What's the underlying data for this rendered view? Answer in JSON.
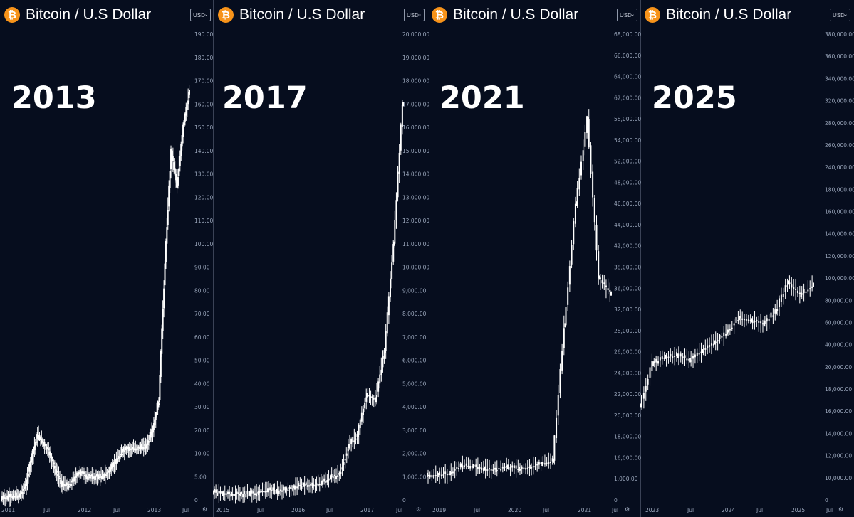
{
  "panels": [
    {
      "title": "Bitcoin / U.S Dollar",
      "currency": "USD",
      "year_label": "2013",
      "settings_icon": "gear-icon"
    },
    {
      "title": "Bitcoin / U.S Dollar",
      "currency": "USD",
      "year_label": "2017",
      "settings_icon": "gear-icon"
    },
    {
      "title": "Bitcoin / U.S Dollar",
      "currency": "USD",
      "year_label": "2021",
      "settings_icon": "gear-icon"
    },
    {
      "title": "Bitcoin / U.S Dollar",
      "currency": "USD",
      "year_label": "2025",
      "settings_icon": "gear-icon"
    }
  ],
  "colors": {
    "background": "#060d1e",
    "candle": "#ffffff",
    "axis_text": "#9aa6bb",
    "bitcoin_orange": "#f7931a"
  },
  "chart_data": [
    {
      "type": "line",
      "title": "Bitcoin / U.S Dollar",
      "scale": "nonlinear price axis",
      "y_ticks": [
        "0",
        "5.00",
        "10.00",
        "20.00",
        "30.00",
        "40.00",
        "50.00",
        "60.00",
        "70.00",
        "80.00",
        "90.00",
        "100.00",
        "110.00",
        "120.00",
        "130.00",
        "140.00",
        "150.00",
        "160.00",
        "170.00",
        "180.00",
        "190.00"
      ],
      "x_ticks": [
        "2011",
        "Jul",
        "2012",
        "Jul",
        "2013",
        "Jul"
      ],
      "series": [
        {
          "x": [
            "2010-12",
            "2011-01",
            "2011-02",
            "2011-03",
            "2011-04",
            "2011-05",
            "2011-06",
            "2011-07",
            "2011-08",
            "2011-09",
            "2011-10",
            "2011-11",
            "2011-12",
            "2012-01",
            "2012-02",
            "2012-03",
            "2012-04",
            "2012-05",
            "2012-06",
            "2012-07",
            "2012-08",
            "2012-09",
            "2012-10",
            "2012-11",
            "2012-12",
            "2013-01",
            "2013-02",
            "2013-03",
            "2013-04",
            "2013-05",
            "2013-06",
            "2013-07"
          ],
          "values": [
            0.3,
            0.5,
            0.9,
            1.0,
            3.0,
            9.0,
            18.0,
            14.0,
            10.0,
            6.0,
            3.5,
            3.0,
            4.5,
            6.0,
            5.0,
            5.0,
            5.0,
            5.2,
            6.5,
            8.5,
            11.0,
            12.0,
            12.0,
            12.5,
            13.5,
            20.0,
            33.0,
            92.0,
            140.0,
            125.0,
            150.0,
            165.0
          ]
        }
      ]
    },
    {
      "type": "line",
      "title": "Bitcoin / U.S Dollar",
      "scale": "nonlinear price axis",
      "y_ticks": [
        "0",
        "1,000.00",
        "2,000.00",
        "3,000.00",
        "4,000.00",
        "5,000.00",
        "6,000.00",
        "7,000.00",
        "8,000.00",
        "9,000.00",
        "10,000.00",
        "11,000.00",
        "12,000.00",
        "13,000.00",
        "14,000.00",
        "15,000.00",
        "16,000.00",
        "17,000.00",
        "18,000.00",
        "19,000.00",
        "20,000.00"
      ],
      "x_ticks": [
        "2015",
        "Jul",
        "2016",
        "Jul",
        "2017",
        "Jul"
      ],
      "series": [
        {
          "x": [
            "2014-12",
            "2015-01",
            "2015-03",
            "2015-05",
            "2015-07",
            "2015-09",
            "2015-11",
            "2016-01",
            "2016-03",
            "2016-05",
            "2016-07",
            "2016-09",
            "2016-11",
            "2017-01",
            "2017-03",
            "2017-05",
            "2017-07",
            "2017-08",
            "2017-09",
            "2017-10",
            "2017-11",
            "2017-12"
          ],
          "values": [
            320,
            270,
            250,
            240,
            280,
            300,
            420,
            400,
            420,
            530,
            650,
            610,
            740,
            970,
            1100,
            2300,
            2800,
            4500,
            4300,
            6400,
            11000,
            17000
          ]
        }
      ]
    },
    {
      "type": "line",
      "title": "Bitcoin / U.S Dollar",
      "scale": "nonlinear price axis",
      "y_ticks": [
        "0",
        "1,000.00",
        "16,000.00",
        "18,000.00",
        "20,000.00",
        "22,000.00",
        "24,000.00",
        "26,000.00",
        "28,000.00",
        "32,000.00",
        "36,000.00",
        "38,000.00",
        "42,000.00",
        "44,000.00",
        "46,000.00",
        "48,000.00",
        "52,000.00",
        "54,000.00",
        "58,000.00",
        "62,000.00",
        "64,000.00",
        "66,000.00",
        "68,000.00"
      ],
      "x_ticks": [
        "2019",
        "Jul",
        "2020",
        "Jul",
        "2021",
        "Jul"
      ],
      "series": [
        {
          "x": [
            "2018-12",
            "2019-02",
            "2019-04",
            "2019-06",
            "2019-08",
            "2019-10",
            "2019-12",
            "2020-02",
            "2020-04",
            "2020-06",
            "2020-08",
            "2020-10",
            "2020-12",
            "2021-02",
            "2021-04",
            "2021-05",
            "2021-06"
          ],
          "values": [
            3700,
            3600,
            5000,
            10500,
            10000,
            8300,
            7200,
            9500,
            7800,
            9300,
            11700,
            13800,
            29000,
            46000,
            58000,
            37000,
            35000
          ]
        }
      ]
    },
    {
      "type": "line",
      "title": "Bitcoin / U.S Dollar",
      "scale": "nonlinear price axis",
      "y_ticks": [
        "0",
        "10,000.00",
        "12,000.00",
        "14,000.00",
        "16,000.00",
        "18,000.00",
        "20,000.00",
        "40,000.00",
        "60,000.00",
        "80,000.00",
        "100,000.00",
        "120,000.00",
        "140,000.00",
        "160,000.00",
        "180,000.00",
        "240,000.00",
        "260,000.00",
        "280,000.00",
        "320,000.00",
        "340,000.00",
        "360,000.00",
        "380,000.00"
      ],
      "x_ticks": [
        "2023",
        "Jul",
        "2024",
        "Jul",
        "2025",
        "Jul"
      ],
      "series": [
        {
          "x": [
            "2022-12",
            "2023-02",
            "2023-04",
            "2023-06",
            "2023-08",
            "2023-10",
            "2023-12",
            "2024-02",
            "2024-04",
            "2024-06",
            "2024-08",
            "2024-10",
            "2024-12",
            "2025-02",
            "2025-04"
          ],
          "values": [
            16500,
            23000,
            29000,
            30000,
            26000,
            34000,
            42000,
            51000,
            64000,
            62000,
            59000,
            70000,
            96000,
            85000,
            94000
          ]
        }
      ]
    }
  ]
}
